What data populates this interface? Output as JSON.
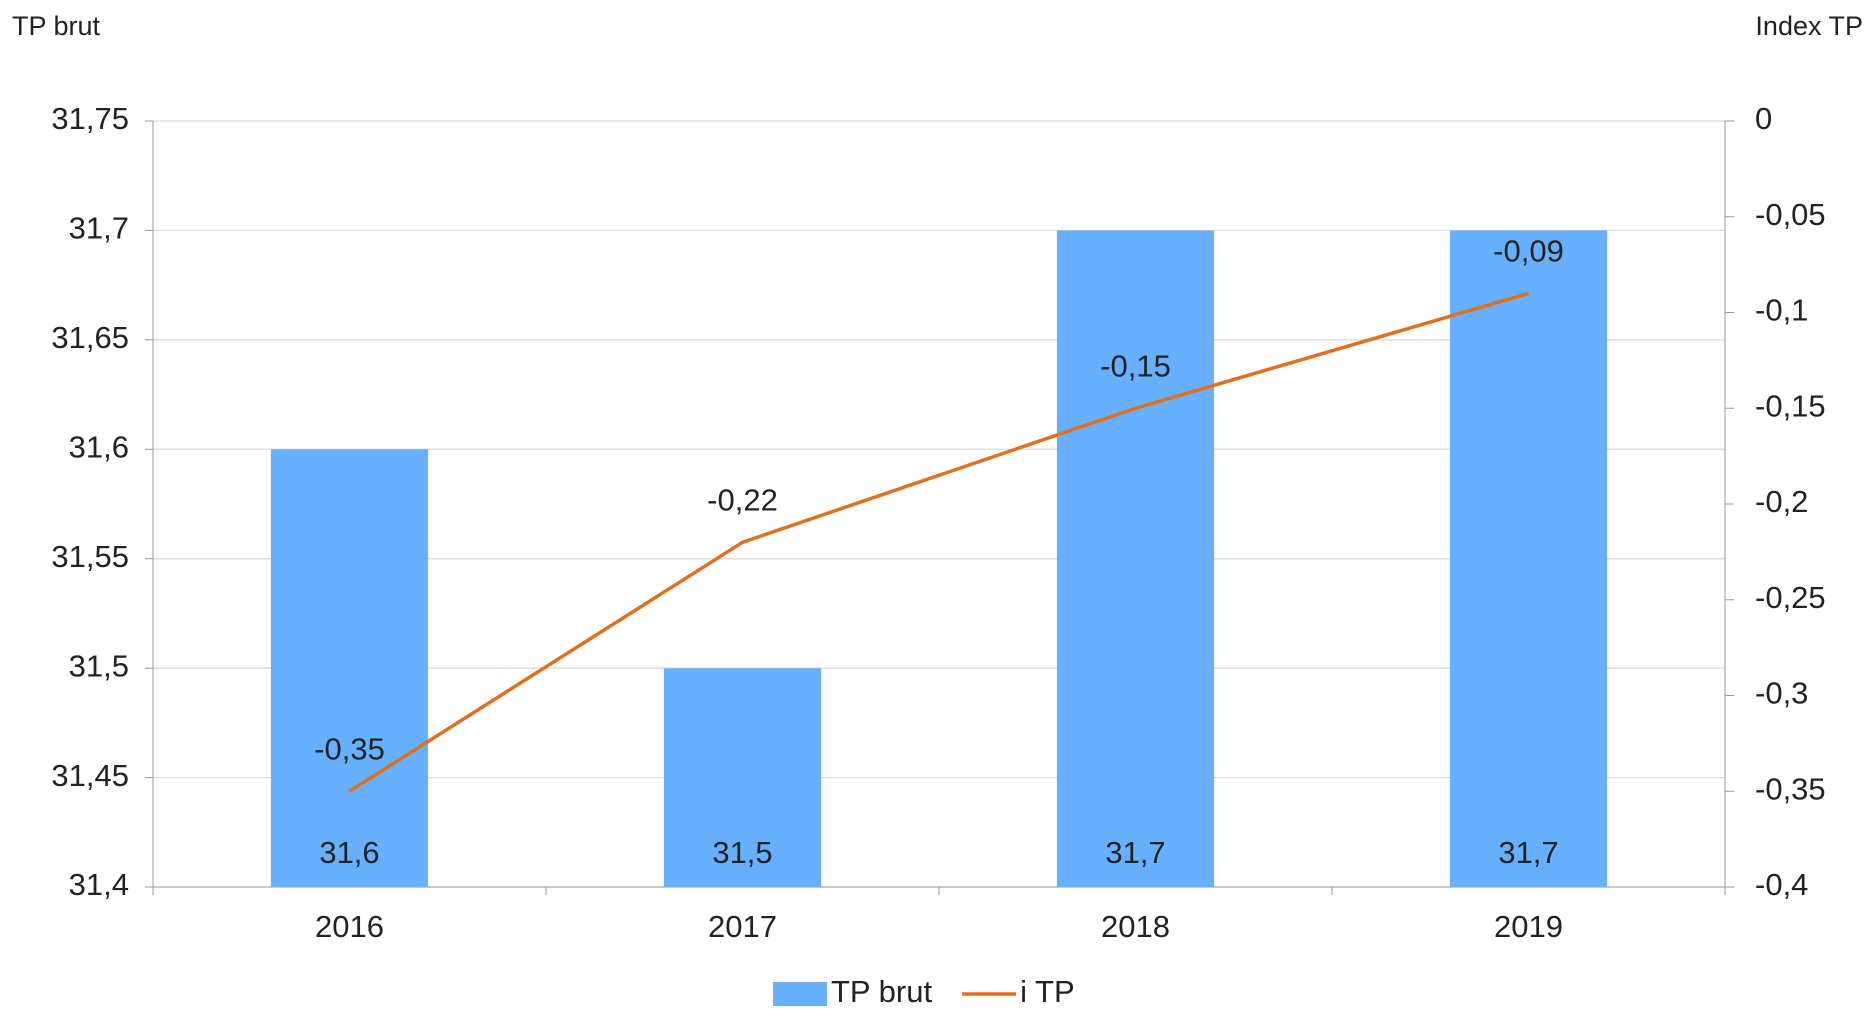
{
  "chart_data": {
    "type": "bar",
    "y_label": "TP brut",
    "y2_label": "Index TP",
    "categories": [
      "2016",
      "2017",
      "2018",
      "2019"
    ],
    "series": [
      {
        "name": "TP brut",
        "type": "bar",
        "color": "#66b0ff",
        "values": [
          31.6,
          31.5,
          31.7,
          31.7
        ],
        "value_labels": [
          "31,6",
          "31,5",
          "31,7",
          "31,7"
        ]
      },
      {
        "name": "i TP",
        "type": "line",
        "axis": "y2",
        "color": "#e07020",
        "values": [
          -0.35,
          -0.22,
          -0.15,
          -0.09
        ],
        "value_labels": [
          "-0,35",
          "-0,22",
          "-0,15",
          "-0,09"
        ]
      }
    ],
    "ylim": [
      31.4,
      31.75
    ],
    "yticks": [
      {
        "value": 31.4,
        "label": "31,4"
      },
      {
        "value": 31.45,
        "label": "31,45"
      },
      {
        "value": 31.5,
        "label": "31,5"
      },
      {
        "value": 31.55,
        "label": "31,55"
      },
      {
        "value": 31.6,
        "label": "31,6"
      },
      {
        "value": 31.65,
        "label": "31,65"
      },
      {
        "value": 31.7,
        "label": "31,7"
      },
      {
        "value": 31.75,
        "label": "31,75"
      }
    ],
    "y2lim": [
      -0.4,
      0
    ],
    "y2ticks": [
      {
        "value": -0.4,
        "label": "-0,4"
      },
      {
        "value": -0.35,
        "label": "-0,35"
      },
      {
        "value": -0.3,
        "label": "-0,3"
      },
      {
        "value": -0.25,
        "label": "-0,25"
      },
      {
        "value": -0.2,
        "label": "-0,2"
      },
      {
        "value": -0.15,
        "label": "-0,15"
      },
      {
        "value": -0.1,
        "label": "-0,1"
      },
      {
        "value": -0.05,
        "label": "-0,05"
      },
      0
    ],
    "grid": true,
    "legend": "bottom"
  }
}
